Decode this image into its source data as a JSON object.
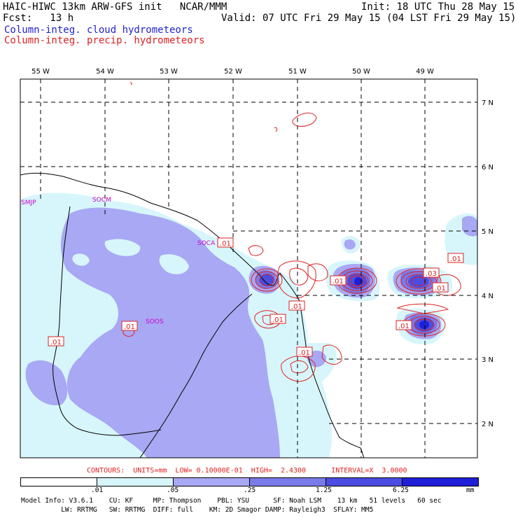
{
  "header": {
    "left_line1": "HAIC-HIWC 13km ARW-GFS init   NCAR/MMM",
    "left_line2": "Fcst:   13 h",
    "right_line1": "Init: 18 UTC Thu 28 May 15",
    "right_line2": "Valid: 07 UTC Fri 29 May 15 (04 LST Fri 29 May 15)",
    "legend_blue": "Column-integ. cloud hydrometeors",
    "legend_red": "Column-integ. precip. hydrometeors"
  },
  "colors": {
    "cloud_light": "#d7f6fb",
    "cloud_lavender": "#a8a8f4",
    "cloud_mid": "#7a7ae8",
    "cloud_dark": "#4c4ce0",
    "cloud_max": "#1f1fd8",
    "precip_red": "#dd2222",
    "station_magenta": "#cc00cc"
  },
  "map": {
    "lon_labels": [
      "55 W",
      "54 W",
      "53 W",
      "52 W",
      "51 W",
      "50 W",
      "49 W"
    ],
    "lat_labels": [
      "7 N",
      "6 N",
      "5 N",
      "4 N",
      "3 N",
      "2 N"
    ],
    "stations": [
      "SMJP",
      "SOCM",
      "SOCA",
      "SOOS"
    ],
    "contour_labels": [
      ".01",
      ".01",
      ".01",
      ".01",
      ".01",
      ".01",
      ".01",
      ".01",
      ".03",
      ".01",
      ".01"
    ]
  },
  "contours_info": "CONTOURS:  UNITS=mm  LOW= 0.10000E-01  HIGH=  2.4300      INTERVAL=X  3.0000",
  "colorbar": {
    "ticks": [
      ".01",
      ".05",
      ".25",
      "1.25",
      "6.25"
    ],
    "units": "mm"
  },
  "footer": {
    "line1": "Model Info: V3.6.1    CU: KF     MP: Thompson    PBL: YSU      SF: Noah LSM    13 km   51 levels   60 sec",
    "line2": "          LW: RRTMG   SW: RRTMG  DIFF: full    KM: 2D Smagor DAMP: Rayleigh3  SFLAY: MM5"
  }
}
